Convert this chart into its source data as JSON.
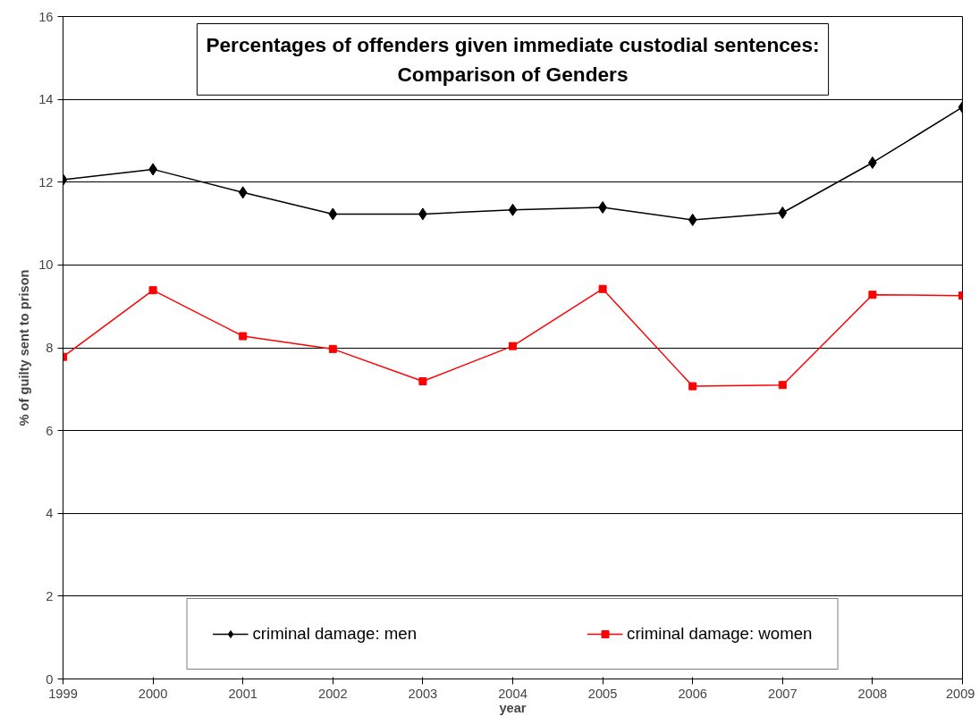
{
  "chart_data": {
    "type": "line",
    "title": "Percentages of offenders given immediate custodial sentences: Comparison of Genders",
    "xlabel": "year",
    "ylabel": "% of guilty sent to prison",
    "x": [
      1999,
      2000,
      2001,
      2002,
      2003,
      2004,
      2005,
      2006,
      2007,
      2008,
      2009
    ],
    "series": [
      {
        "name": "criminal damage: men",
        "color": "#000000",
        "marker": "diamond",
        "values": [
          12.06,
          12.31,
          11.75,
          11.23,
          11.23,
          11.33,
          11.39,
          11.09,
          11.26,
          12.47,
          13.81
        ]
      },
      {
        "name": "criminal damage: women",
        "color": "#ff0000",
        "marker": "square",
        "values": [
          7.78,
          9.39,
          8.28,
          7.97,
          7.19,
          8.04,
          9.42,
          7.07,
          7.1,
          9.28,
          9.26
        ]
      }
    ],
    "xlim": [
      1999,
      2009
    ],
    "xticks": [
      1999,
      2000,
      2001,
      2002,
      2003,
      2004,
      2005,
      2006,
      2007,
      2008,
      2009
    ],
    "ylim": [
      0,
      16
    ],
    "yticks": [
      0,
      2,
      4,
      6,
      8,
      10,
      12,
      14,
      16
    ],
    "grid": "y",
    "legend": "bottom",
    "line_style": "solid"
  }
}
